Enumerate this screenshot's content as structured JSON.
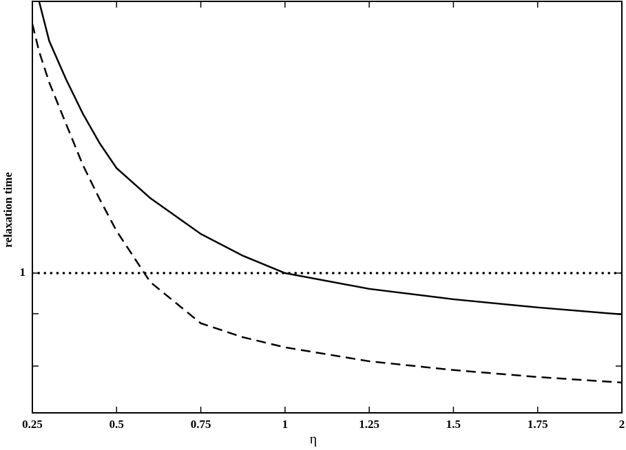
{
  "chart_data": {
    "type": "line",
    "xlabel": "η",
    "ylabel": "relaxation time",
    "x": [
      0.25,
      0.27,
      0.3,
      0.35,
      0.4,
      0.45,
      0.5,
      0.6,
      0.75,
      0.875,
      1,
      1.25,
      1.5,
      1.75,
      2
    ],
    "series": [
      {
        "color": "#000000",
        "style": "solid",
        "values": [
          null,
          4.45,
          3.58,
          2.9,
          2.4,
          2.04,
          1.78,
          1.51,
          1.24,
          1.1,
          1.0,
          0.917,
          0.866,
          0.828,
          0.797
        ]
      },
      {
        "color": "#000000",
        "style": "dashed",
        "values": [
          3.93,
          3.38,
          2.85,
          2.27,
          1.81,
          1.5,
          1.26,
          0.952,
          0.759,
          0.703,
          0.665,
          0.616,
          0.587,
          0.565,
          0.548
        ]
      },
      {
        "color": "#000000",
        "style": "dotted",
        "values": [
          1,
          1,
          1,
          1,
          1,
          1,
          1,
          1,
          1,
          1,
          1,
          1,
          1,
          1,
          1
        ]
      }
    ],
    "xlim": [
      0.25,
      2
    ],
    "xticks": [
      0.25,
      0.5,
      0.75,
      1,
      1.25,
      1.5,
      1.75,
      2
    ],
    "ylim": [
      0.464,
      4.45
    ],
    "yticks": [
      1
    ],
    "yminorticks": [
      0.6,
      0.8
    ],
    "ylog": true,
    "grid": false
  }
}
